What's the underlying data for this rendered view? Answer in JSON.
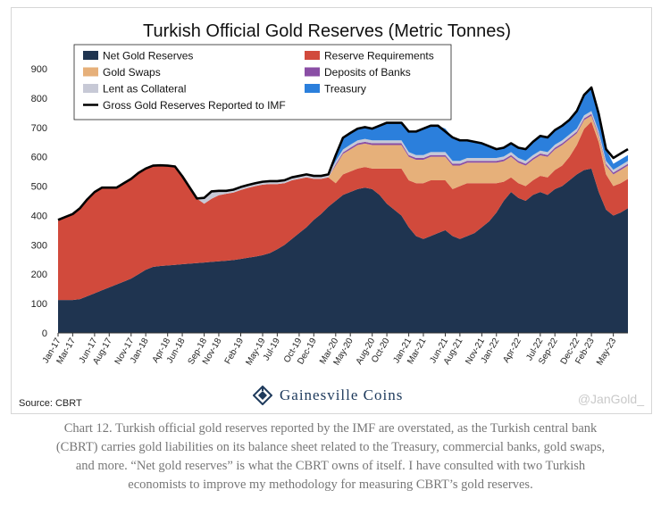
{
  "chart_data": {
    "type": "area",
    "title": "Turkish Official Gold Reserves (Metric Tonnes)",
    "ylim": [
      0,
      900
    ],
    "yticks": [
      0,
      100,
      200,
      300,
      400,
      500,
      600,
      700,
      800,
      900
    ],
    "grid": false,
    "legend_position": "top-left, inside plot",
    "x_tick_labels": [
      "Jan-17",
      "Mar-17",
      "Jun-17",
      "Aug-17",
      "Nov-17",
      "Jan-18",
      "Apr-18",
      "Jun-18",
      "Sep-18",
      "Nov-18",
      "Feb-19",
      "May-19",
      "Jul-19",
      "Oct-19",
      "Dec-19",
      "Mar-20",
      "May-20",
      "Aug-20",
      "Oct-20",
      "Jan-21",
      "Mar-21",
      "Jun-21",
      "Aug-21",
      "Nov-21",
      "Jan-22",
      "Apr-22",
      "Jul-22",
      "Sep-22",
      "Dec-22",
      "Feb-23",
      "May-23"
    ],
    "x": [
      "Jan-17",
      "Feb-17",
      "Mar-17",
      "Apr-17",
      "May-17",
      "Jun-17",
      "Jul-17",
      "Aug-17",
      "Sep-17",
      "Oct-17",
      "Nov-17",
      "Dec-17",
      "Jan-18",
      "Feb-18",
      "Mar-18",
      "Apr-18",
      "May-18",
      "Jun-18",
      "Jul-18",
      "Aug-18",
      "Sep-18",
      "Oct-18",
      "Nov-18",
      "Dec-18",
      "Jan-19",
      "Feb-19",
      "Mar-19",
      "Apr-19",
      "May-19",
      "Jun-19",
      "Jul-19",
      "Aug-19",
      "Sep-19",
      "Oct-19",
      "Nov-19",
      "Dec-19",
      "Jan-20",
      "Feb-20",
      "Mar-20",
      "Apr-20",
      "May-20",
      "Jun-20",
      "Jul-20",
      "Aug-20",
      "Sep-20",
      "Oct-20",
      "Nov-20",
      "Dec-20",
      "Jan-21",
      "Feb-21",
      "Mar-21",
      "Apr-21",
      "May-21",
      "Jun-21",
      "Jul-21",
      "Aug-21",
      "Sep-21",
      "Oct-21",
      "Nov-21",
      "Dec-21",
      "Jan-22",
      "Feb-22",
      "Mar-22",
      "Apr-22",
      "May-22",
      "Jun-22",
      "Jul-22",
      "Aug-22",
      "Sep-22",
      "Oct-22",
      "Nov-22",
      "Dec-22",
      "Jan-23",
      "Feb-23",
      "Mar-23",
      "Apr-23",
      "May-23",
      "Jun-23",
      "Jul-23"
    ],
    "series": [
      {
        "name": "Net Gold Reserves",
        "color": "#1f3450",
        "values": [
          112,
          112,
          112,
          115,
          125,
          135,
          145,
          155,
          165,
          175,
          185,
          200,
          215,
          225,
          228,
          230,
          232,
          234,
          236,
          238,
          240,
          242,
          244,
          246,
          248,
          252,
          256,
          260,
          265,
          272,
          285,
          300,
          320,
          340,
          360,
          385,
          405,
          430,
          450,
          470,
          480,
          490,
          495,
          490,
          470,
          440,
          420,
          400,
          360,
          330,
          320,
          330,
          340,
          350,
          330,
          320,
          330,
          340,
          360,
          380,
          410,
          450,
          480,
          460,
          450,
          470,
          480,
          470,
          490,
          500,
          520,
          540,
          555,
          560,
          480,
          420,
          400,
          410,
          425
        ]
      },
      {
        "name": "Reserve Requirements",
        "color": "#d14a3c",
        "values": [
          270,
          280,
          290,
          310,
          330,
          345,
          350,
          340,
          330,
          335,
          340,
          345,
          345,
          345,
          343,
          340,
          335,
          300,
          260,
          220,
          200,
          215,
          225,
          228,
          230,
          235,
          238,
          240,
          240,
          235,
          222,
          210,
          200,
          185,
          170,
          140,
          120,
          100,
          60,
          70,
          70,
          70,
          70,
          70,
          90,
          120,
          140,
          160,
          160,
          180,
          190,
          190,
          180,
          170,
          160,
          180,
          180,
          170,
          150,
          130,
          100,
          65,
          50,
          50,
          50,
          50,
          55,
          60,
          65,
          70,
          80,
          100,
          140,
          160,
          170,
          120,
          100,
          100,
          100
        ]
      },
      {
        "name": "Gold Swaps",
        "color": "#e6b07a",
        "values": [
          0,
          0,
          0,
          0,
          0,
          0,
          0,
          0,
          0,
          0,
          0,
          0,
          0,
          0,
          0,
          0,
          0,
          0,
          0,
          0,
          0,
          0,
          0,
          0,
          0,
          0,
          0,
          0,
          0,
          0,
          0,
          0,
          0,
          0,
          0,
          0,
          0,
          0,
          60,
          70,
          75,
          80,
          80,
          80,
          80,
          80,
          80,
          80,
          80,
          80,
          80,
          80,
          80,
          80,
          80,
          70,
          70,
          70,
          70,
          70,
          70,
          70,
          70,
          70,
          70,
          70,
          70,
          70,
          70,
          70,
          60,
          40,
          30,
          20,
          20,
          30,
          40,
          45,
          45
        ]
      },
      {
        "name": "Deposits of Banks",
        "color": "#8a4ea5",
        "values": [
          0,
          0,
          0,
          0,
          0,
          0,
          0,
          0,
          0,
          0,
          0,
          0,
          0,
          0,
          0,
          0,
          0,
          0,
          0,
          0,
          0,
          0,
          0,
          0,
          0,
          0,
          0,
          0,
          0,
          0,
          0,
          0,
          0,
          0,
          0,
          0,
          0,
          0,
          5,
          5,
          6,
          6,
          6,
          6,
          6,
          6,
          6,
          6,
          6,
          6,
          6,
          6,
          6,
          6,
          6,
          6,
          6,
          6,
          6,
          6,
          6,
          6,
          6,
          6,
          6,
          6,
          6,
          6,
          6,
          6,
          6,
          6,
          6,
          6,
          6,
          6,
          6,
          6,
          6
        ]
      },
      {
        "name": "Lent as Collateral",
        "color": "#c7c9d6",
        "values": [
          0,
          0,
          0,
          0,
          0,
          0,
          0,
          0,
          0,
          0,
          0,
          0,
          0,
          0,
          0,
          0,
          0,
          0,
          0,
          0,
          20,
          25,
          15,
          10,
          10,
          10,
          10,
          10,
          10,
          10,
          10,
          10,
          10,
          10,
          10,
          10,
          10,
          10,
          10,
          10,
          10,
          10,
          10,
          10,
          10,
          10,
          10,
          10,
          10,
          10,
          10,
          10,
          10,
          10,
          10,
          10,
          10,
          10,
          10,
          10,
          10,
          10,
          10,
          10,
          10,
          10,
          10,
          10,
          10,
          10,
          10,
          10,
          10,
          10,
          10,
          10,
          10,
          10,
          10
        ]
      },
      {
        "name": "Treasury",
        "color": "#2b7fdc",
        "values": [
          0,
          0,
          0,
          0,
          0,
          0,
          0,
          0,
          0,
          0,
          0,
          0,
          0,
          0,
          0,
          0,
          0,
          0,
          0,
          0,
          0,
          0,
          0,
          0,
          0,
          0,
          0,
          0,
          0,
          0,
          0,
          0,
          0,
          0,
          0,
          0,
          0,
          0,
          20,
          40,
          40,
          40,
          40,
          40,
          50,
          60,
          60,
          60,
          70,
          80,
          90,
          90,
          90,
          80,
          80,
          70,
          60,
          55,
          50,
          40,
          30,
          30,
          30,
          35,
          40,
          45,
          50,
          50,
          50,
          50,
          50,
          60,
          70,
          80,
          60,
          40,
          20,
          20,
          20
        ]
      }
    ],
    "line_series": {
      "name": "Gross Gold Reserves Reported to IMF",
      "color": "#000000",
      "values": [
        385,
        395,
        405,
        425,
        455,
        480,
        495,
        495,
        495,
        510,
        525,
        545,
        560,
        570,
        571,
        570,
        567,
        534,
        496,
        458,
        460,
        482,
        484,
        484,
        488,
        497,
        504,
        510,
        515,
        517,
        517,
        520,
        530,
        535,
        540,
        535,
        535,
        540,
        605,
        665,
        681,
        696,
        701,
        696,
        706,
        716,
        716,
        716,
        686,
        686,
        696,
        706,
        706,
        686,
        666,
        656,
        656,
        651,
        646,
        636,
        626,
        631,
        646,
        631,
        626,
        651,
        671,
        666,
        691,
        706,
        726,
        756,
        811,
        836,
        746,
        626,
        596,
        611,
        626
      ]
    }
  },
  "footer": {
    "source": "Source: CBRT",
    "brand": "Gainesville Coins",
    "handle": "@JanGold_"
  },
  "caption": "Chart 12. Turkish official gold reserves reported by the IMF are overstated, as the Turkish central bank (CBRT) carries gold liabilities on its balance sheet related to the Treasury, commercial banks, gold swaps, and more. “Net gold reserves” is what the CBRT owns of itself. I have consulted with two Turkish economists to improve my methodology for measuring CBRT’s gold reserves."
}
